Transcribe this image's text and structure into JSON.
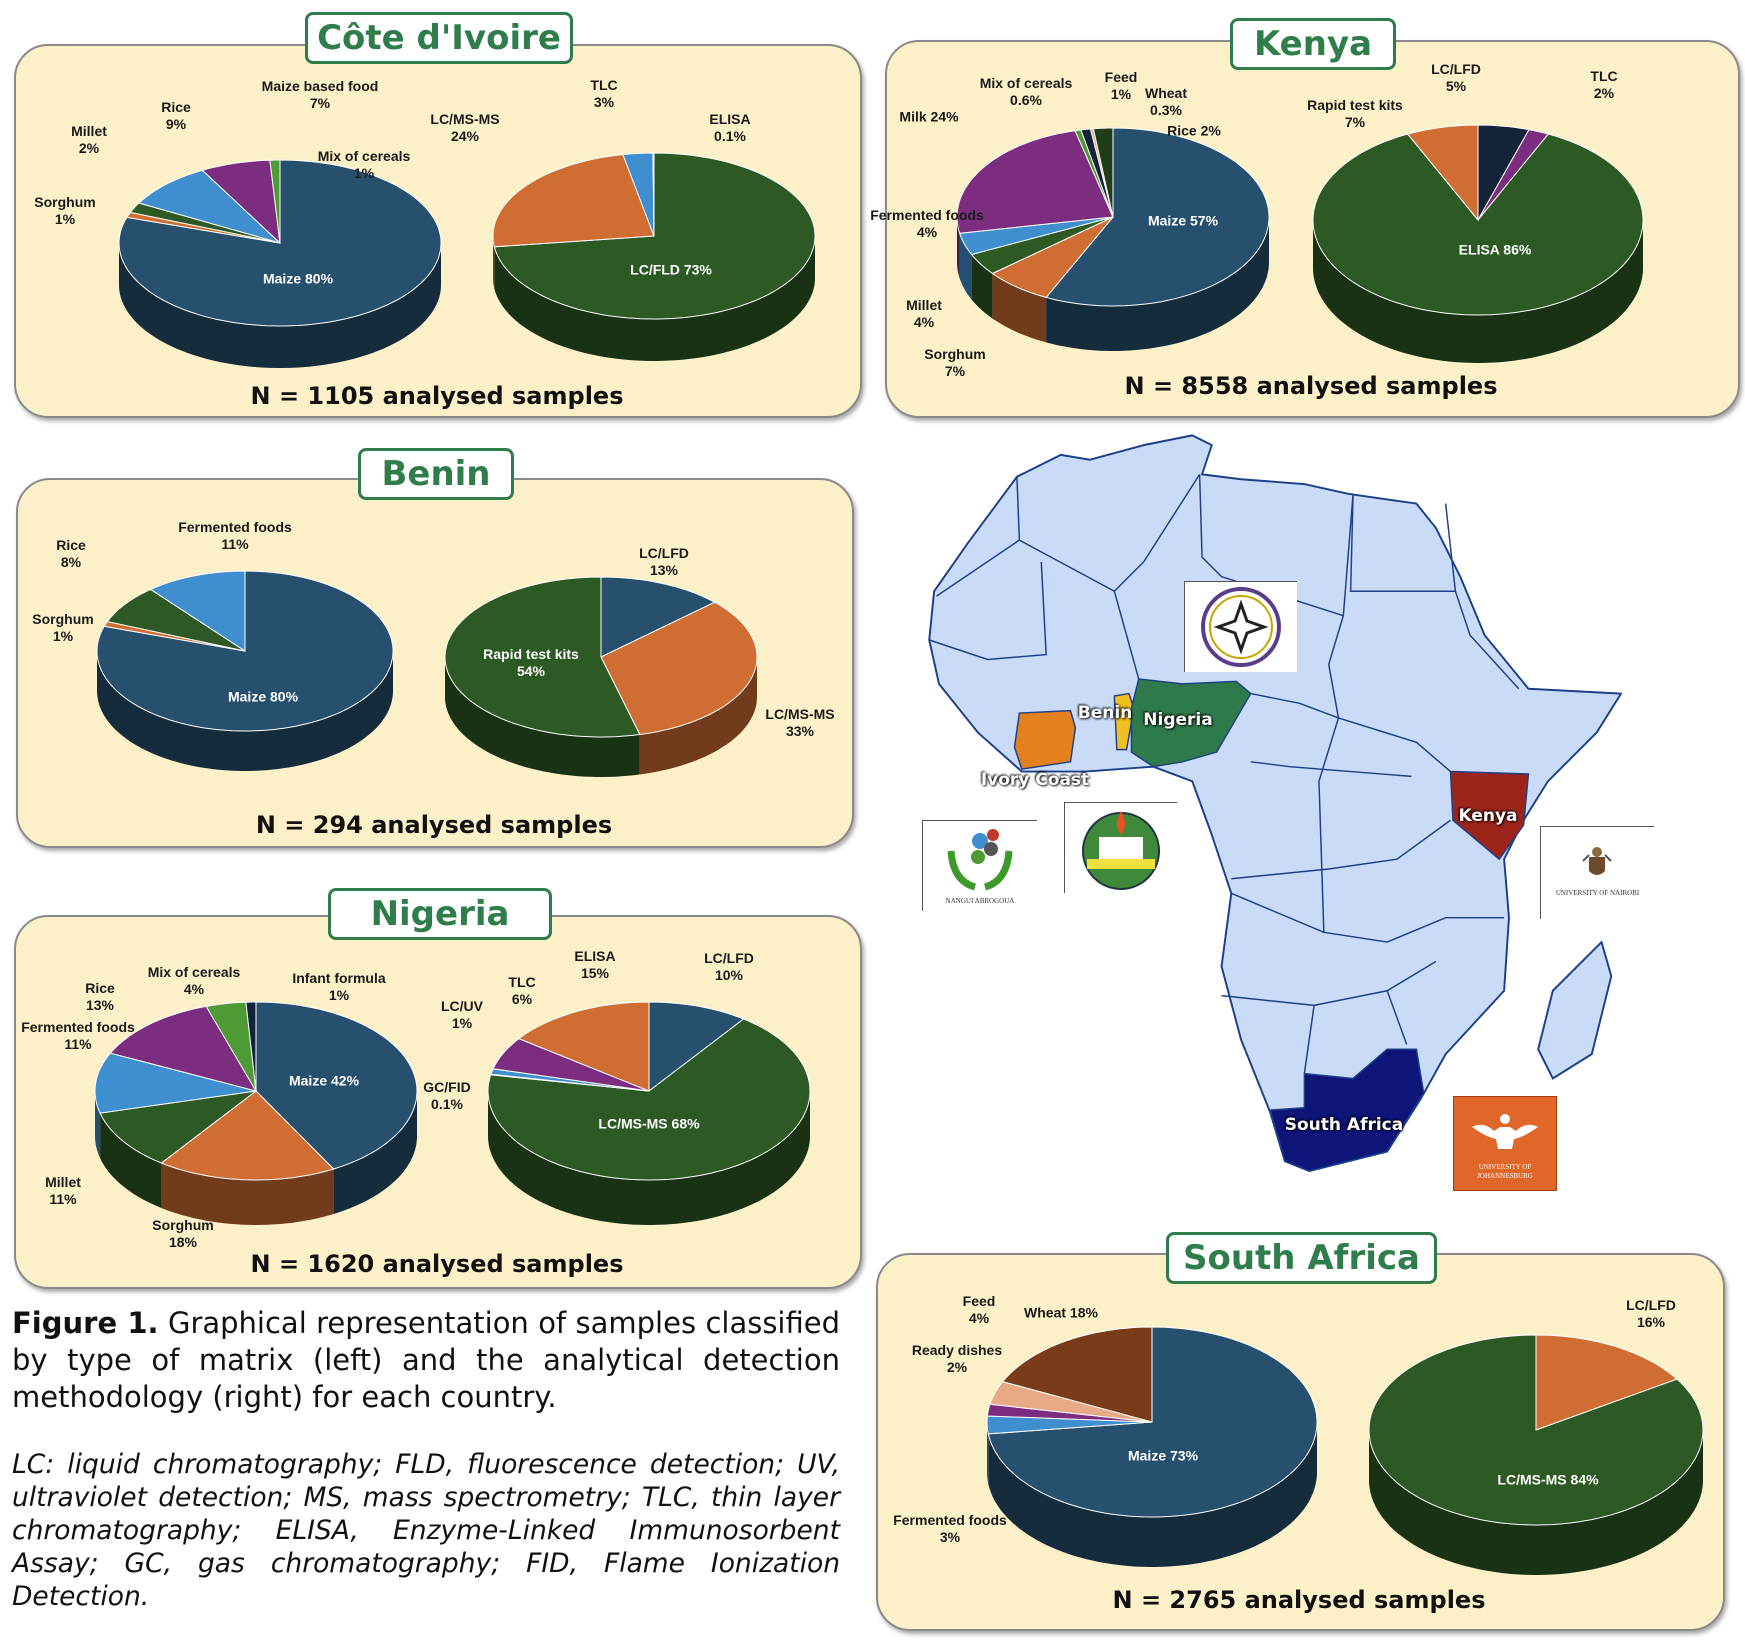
{
  "panels": [
    {
      "title": "Côte d'Ivoire",
      "n_text": "N = 1105 analysed samples"
    },
    {
      "title": "Kenya",
      "n_text": "N = 8558 analysed samples"
    },
    {
      "title": "Benin",
      "n_text": "N = 294 analysed samples"
    },
    {
      "title": "Nigeria",
      "n_text": "N = 1620 analysed samples"
    },
    {
      "title": "South Africa",
      "n_text": "N = 2765 analysed samples"
    }
  ],
  "chart_data": [
    {
      "type": "pie",
      "country": "Côte d'Ivoire",
      "slices": [
        {
          "label": "Maize",
          "value": 80,
          "color": "#27506f"
        },
        {
          "label": "Sorghum",
          "value": 1,
          "color": "#d06d33"
        },
        {
          "label": "Millet",
          "value": 2,
          "color": "#2d5a24"
        },
        {
          "label": "Rice",
          "value": 9,
          "color": "#3f8fd0"
        },
        {
          "label": "Maize based food",
          "value": 7,
          "color": "#7d2d80"
        },
        {
          "label": "Mix of cereals",
          "value": 1,
          "color": "#4e9a35"
        }
      ]
    },
    {
      "type": "pie",
      "country": "Côte d'Ivoire",
      "slices": [
        {
          "label": "LC/FLD",
          "value": 73,
          "color": "#2d5a24"
        },
        {
          "label": "LC/MS-MS",
          "value": 24,
          "color": "#d06d33"
        },
        {
          "label": "TLC",
          "value": 3,
          "color": "#3f8fd0"
        },
        {
          "label": "ELISA",
          "value": 0.1,
          "color": "#d9b400"
        }
      ]
    },
    {
      "type": "pie",
      "country": "Kenya",
      "slices": [
        {
          "label": "Maize",
          "value": 57,
          "color": "#27506f"
        },
        {
          "label": "Sorghum",
          "value": 7,
          "color": "#d06d33"
        },
        {
          "label": "Millet",
          "value": 4,
          "color": "#2d5a24"
        },
        {
          "label": "Fermented foods",
          "value": 4,
          "color": "#3f8fd0"
        },
        {
          "label": "Milk",
          "value": 24,
          "color": "#7d2d80"
        },
        {
          "label": "Mix of cereals",
          "value": 0.6,
          "color": "#4e9a35"
        },
        {
          "label": "Feed",
          "value": 1,
          "color": "#13233a"
        },
        {
          "label": "Wheat",
          "value": 0.3,
          "color": "#e8a985"
        },
        {
          "label": "Rice",
          "value": 2,
          "color": "#1f3d18"
        }
      ]
    },
    {
      "type": "pie",
      "country": "Kenya",
      "slices": [
        {
          "label": "LC/LFD",
          "value": 5,
          "color": "#13233a"
        },
        {
          "label": "TLC",
          "value": 2,
          "color": "#7d2d80"
        },
        {
          "label": "ELISA",
          "value": 86,
          "color": "#2d5a24"
        },
        {
          "label": "Rapid test kits",
          "value": 7,
          "color": "#d06d33"
        }
      ]
    },
    {
      "type": "pie",
      "country": "Benin",
      "slices": [
        {
          "label": "Maize",
          "value": 80,
          "color": "#27506f"
        },
        {
          "label": "Sorghum",
          "value": 1,
          "color": "#d06d33"
        },
        {
          "label": "Rice",
          "value": 8,
          "color": "#2d5a24"
        },
        {
          "label": "Fermented foods",
          "value": 11,
          "color": "#3f8fd0"
        }
      ]
    },
    {
      "type": "pie",
      "country": "Benin",
      "slices": [
        {
          "label": "LC/LFD",
          "value": 13,
          "color": "#27506f"
        },
        {
          "label": "LC/MS-MS",
          "value": 33,
          "color": "#d06d33"
        },
        {
          "label": "Rapid test kits",
          "value": 54,
          "color": "#2d5a24"
        }
      ]
    },
    {
      "type": "pie",
      "country": "Nigeria",
      "slices": [
        {
          "label": "Maize",
          "value": 42,
          "color": "#27506f"
        },
        {
          "label": "Sorghum",
          "value": 18,
          "color": "#d06d33"
        },
        {
          "label": "Millet",
          "value": 11,
          "color": "#2d5a24"
        },
        {
          "label": "Fermented foods",
          "value": 11,
          "color": "#3f8fd0"
        },
        {
          "label": "Rice",
          "value": 13,
          "color": "#7d2d80"
        },
        {
          "label": "Mix of cereals",
          "value": 4,
          "color": "#4e9a35"
        },
        {
          "label": "Infant formula",
          "value": 1,
          "color": "#13233a"
        }
      ]
    },
    {
      "type": "pie",
      "country": "Nigeria",
      "slices": [
        {
          "label": "LC/LFD",
          "value": 10,
          "color": "#27506f"
        },
        {
          "label": "LC/MS-MS",
          "value": 68,
          "color": "#2d5a24"
        },
        {
          "label": "GC/FID",
          "value": 0.1,
          "color": "#d9b400"
        },
        {
          "label": "LC/UV",
          "value": 1,
          "color": "#3f8fd0"
        },
        {
          "label": "TLC",
          "value": 6,
          "color": "#7d2d80"
        },
        {
          "label": "ELISA",
          "value": 15,
          "color": "#d06d33"
        }
      ]
    },
    {
      "type": "pie",
      "country": "South Africa",
      "slices": [
        {
          "label": "Maize",
          "value": 73,
          "color": "#27506f"
        },
        {
          "label": "Fermented foods",
          "value": 3,
          "color": "#3f8fd0"
        },
        {
          "label": "Ready dishes",
          "value": 2,
          "color": "#7d2d80"
        },
        {
          "label": "Feed",
          "value": 4,
          "color": "#e8a985"
        },
        {
          "label": "Wheat",
          "value": 18,
          "color": "#7a3b18"
        }
      ]
    },
    {
      "type": "pie",
      "country": "South Africa",
      "slices": [
        {
          "label": "LC/LFD",
          "value": 16,
          "color": "#d06d33"
        },
        {
          "label": "LC/MS-MS",
          "value": 84,
          "color": "#2d5a24"
        }
      ]
    }
  ],
  "map": {
    "labels": [
      "Benin",
      "Nigeria",
      "Ivory Coast",
      "Kenya",
      "South Africa"
    ],
    "colors": {
      "land": "#c9dbf7",
      "border": "#1d3f8a",
      "ivory_coast": "#e5801f",
      "benin": "#f0c020",
      "nigeria": "#2f7a4a",
      "kenya": "#9c2418",
      "south_africa": "#0e1478"
    },
    "logos": {
      "nangui": "NANGUI ABROGOUA",
      "nairobi": "UNIVERSITY OF NAIROBI",
      "johannesburg": "UNIVERSITY OF JOHANNESBURG"
    }
  },
  "caption": {
    "figure_label": "Figure 1.",
    "text": "Graphical representation of samples classified by type of matrix (left) and the analytical detection methodology (right) for each country.",
    "abbreviations": "LC: liquid chromatography; FLD, fluorescence detection; UV, ultraviolet detection; MS, mass spectrometry; TLC, thin layer chromatography; ELISA, Enzyme-Linked Immunosorbent Assay; GC, gas chromatography; FID, Flame Ionization Detection."
  }
}
